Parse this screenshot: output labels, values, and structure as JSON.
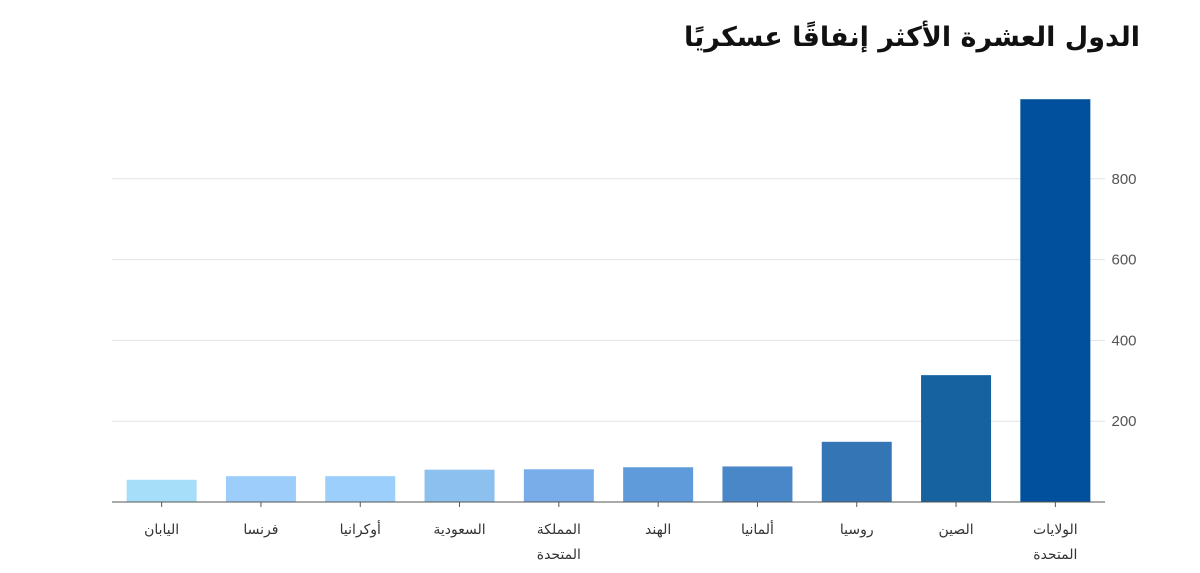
{
  "chart_data": {
    "type": "bar",
    "title": "الدول العشرة الأكثر إنفاقًا عسكريًا",
    "categories": [
      "الولايات المتحدة",
      "الصين",
      "روسيا",
      "ألمانيا",
      "الهند",
      "المملكة المتحدة",
      "السعودية",
      "أوكرانيا",
      "فرنسا",
      "اليابان"
    ],
    "category_lines": [
      [
        "الولايات",
        "المتحدة"
      ],
      [
        "الصين"
      ],
      [
        "روسيا"
      ],
      [
        "ألمانيا"
      ],
      [
        "الهند"
      ],
      [
        "المملكة",
        "المتحدة"
      ],
      [
        "السعودية"
      ],
      [
        "أوكرانيا"
      ],
      [
        "فرنسا"
      ],
      [
        "اليابان"
      ]
    ],
    "values": [
      997,
      314,
      149,
      88,
      86,
      81,
      80,
      64,
      64,
      55
    ],
    "bar_colors": [
      "#00509d",
      "#1661a0",
      "#3476b5",
      "#4a87c8",
      "#5f9bda",
      "#79adea",
      "#8cc0ee",
      "#9ccffb",
      "#9dcefb",
      "#a6def9"
    ],
    "ylim": [
      0,
      1000
    ],
    "yticks": [
      200,
      400,
      600,
      800
    ],
    "y_axis_position": "right",
    "grid": true,
    "xlabel": "",
    "ylabel": ""
  }
}
